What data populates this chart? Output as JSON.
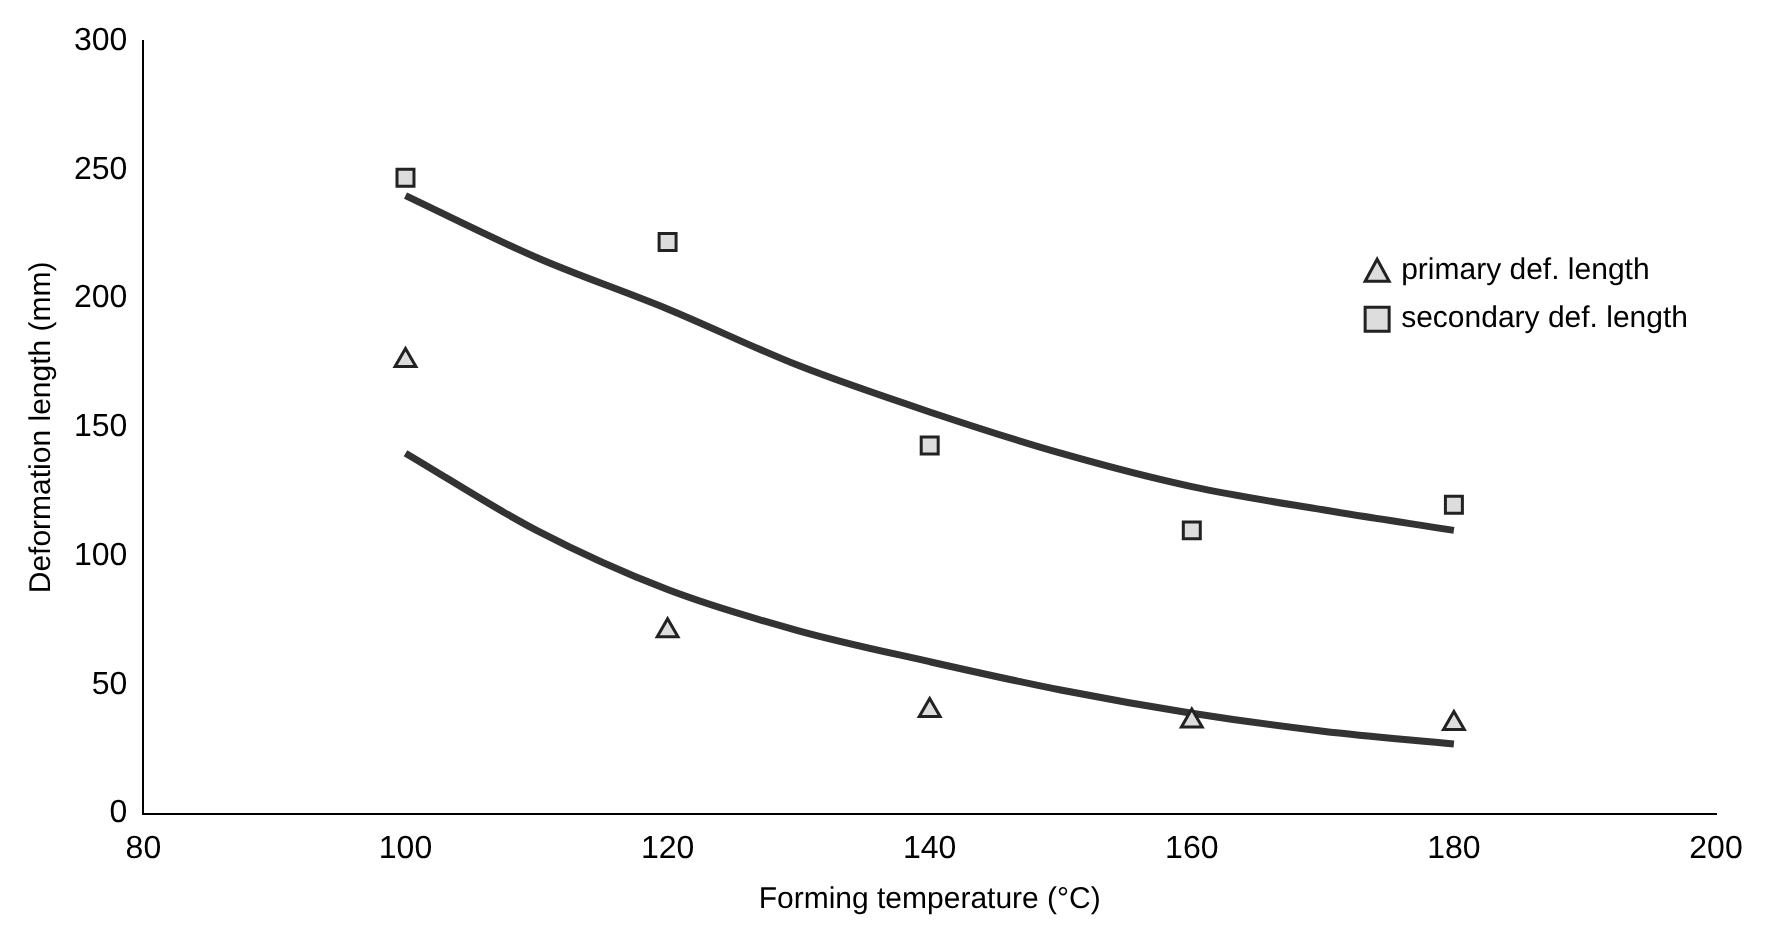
{
  "chart_data": {
    "type": "scatter",
    "xlabel": "Forming temperature (°C)",
    "ylabel": "Deformation length (mm)",
    "xlim": [
      80,
      200
    ],
    "xticks": [
      80,
      100,
      120,
      140,
      160,
      180,
      200
    ],
    "ylim": [
      0,
      300
    ],
    "yticks": [
      0,
      50,
      100,
      150,
      200,
      250,
      300
    ],
    "grid": false,
    "legend": "top right",
    "series": [
      {
        "name": "primary def. length",
        "marker": "triangle",
        "color": "#222222",
        "x": [
          100,
          120,
          140,
          160,
          180
        ],
        "values": [
          176,
          71,
          40,
          36,
          35
        ]
      },
      {
        "name": "secondary def. length",
        "marker": "square",
        "color": "#222222",
        "x": [
          100,
          120,
          140,
          160,
          180
        ],
        "values": [
          247,
          222,
          143,
          110,
          120
        ]
      },
      {
        "type": "line",
        "marker": "none",
        "color": "#333333",
        "x": [
          100,
          110,
          120,
          130,
          140,
          150,
          160,
          170,
          180
        ],
        "values": [
          240,
          216,
          196,
          174,
          156,
          140,
          127,
          118,
          110
        ]
      },
      {
        "type": "line",
        "marker": "none",
        "color": "#333333",
        "x": [
          100,
          110,
          120,
          130,
          140,
          150,
          160,
          170,
          180
        ],
        "values": [
          140,
          110,
          87,
          71,
          59,
          48,
          39,
          32,
          27
        ]
      }
    ]
  }
}
